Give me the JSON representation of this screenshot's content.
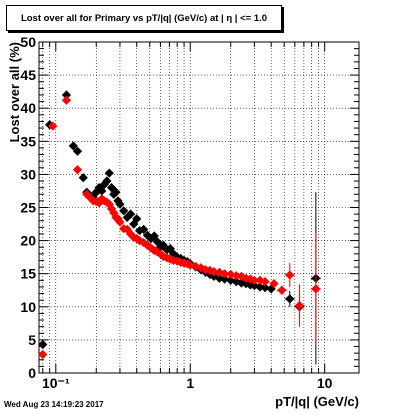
{
  "timestamp": "Wed Aug 23 14:19:23 2017",
  "chart_data": {
    "type": "scatter",
    "title": "Lost over all for Primary vs pT/|q| (GeV/c) at |  η  | <= 1.0",
    "xlabel": "pT/|q| (GeV/c)",
    "ylabel": "Lost over all (%)",
    "xscale": "log",
    "xlim": [
      0.075,
      18
    ],
    "ylim": [
      0,
      50
    ],
    "grid": true,
    "x_tick_labels": [
      {
        "x": 0.1,
        "label": "10⁻¹"
      },
      {
        "x": 1,
        "label": "1"
      },
      {
        "x": 10,
        "label": "10"
      }
    ],
    "y_ticks": [
      0,
      5,
      10,
      15,
      20,
      25,
      30,
      35,
      40,
      45,
      50
    ],
    "series": [
      {
        "color": "#000000",
        "points": [
          {
            "x": 0.08,
            "y": 4.3
          },
          {
            "x": 0.09,
            "y": 37.5
          },
          {
            "x": 0.12,
            "y": 42.0
          },
          {
            "x": 0.135,
            "y": 34.3
          },
          {
            "x": 0.145,
            "y": 33.5
          },
          {
            "x": 0.16,
            "y": 29.5
          },
          {
            "x": 0.17,
            "y": 27.3
          },
          {
            "x": 0.18,
            "y": 26.8
          },
          {
            "x": 0.19,
            "y": 26.5
          },
          {
            "x": 0.2,
            "y": 27.3
          },
          {
            "x": 0.21,
            "y": 28.0
          },
          {
            "x": 0.22,
            "y": 27.5
          },
          {
            "x": 0.23,
            "y": 28.5
          },
          {
            "x": 0.24,
            "y": 29.0
          },
          {
            "x": 0.25,
            "y": 30.2
          },
          {
            "x": 0.26,
            "y": 28.0
          },
          {
            "x": 0.27,
            "y": 27.0
          },
          {
            "x": 0.28,
            "y": 27.3
          },
          {
            "x": 0.29,
            "y": 26.0
          },
          {
            "x": 0.3,
            "y": 25.5
          },
          {
            "x": 0.32,
            "y": 24.5
          },
          {
            "x": 0.34,
            "y": 23.5
          },
          {
            "x": 0.36,
            "y": 24.0
          },
          {
            "x": 0.38,
            "y": 22.5
          },
          {
            "x": 0.4,
            "y": 23.3
          },
          {
            "x": 0.42,
            "y": 21.5
          },
          {
            "x": 0.45,
            "y": 21.7
          },
          {
            "x": 0.48,
            "y": 20.8
          },
          {
            "x": 0.51,
            "y": 20.3
          },
          {
            "x": 0.54,
            "y": 20.7
          },
          {
            "x": 0.57,
            "y": 19.8
          },
          {
            "x": 0.6,
            "y": 19.0
          },
          {
            "x": 0.63,
            "y": 19.3
          },
          {
            "x": 0.67,
            "y": 18.6
          },
          {
            "x": 0.71,
            "y": 18.8
          },
          {
            "x": 0.75,
            "y": 18.0
          },
          {
            "x": 0.8,
            "y": 17.5
          },
          {
            "x": 0.85,
            "y": 17.3
          },
          {
            "x": 0.9,
            "y": 17.0
          },
          {
            "x": 0.95,
            "y": 16.8
          },
          {
            "x": 1.0,
            "y": 16.5
          },
          {
            "x": 1.1,
            "y": 16.0
          },
          {
            "x": 1.2,
            "y": 15.6
          },
          {
            "x": 1.3,
            "y": 15.2
          },
          {
            "x": 1.4,
            "y": 14.9
          },
          {
            "x": 1.5,
            "y": 14.6
          },
          {
            "x": 1.65,
            "y": 14.3
          },
          {
            "x": 1.8,
            "y": 14.2
          },
          {
            "x": 2.0,
            "y": 14.0
          },
          {
            "x": 2.2,
            "y": 13.8
          },
          {
            "x": 2.4,
            "y": 13.6
          },
          {
            "x": 2.6,
            "y": 13.5
          },
          {
            "x": 2.8,
            "y": 13.3
          },
          {
            "x": 3.0,
            "y": 13.2
          },
          {
            "x": 3.3,
            "y": 13.0
          },
          {
            "x": 3.6,
            "y": 12.9
          },
          {
            "x": 4.0,
            "y": 12.7
          },
          {
            "x": 5.5,
            "y": 11.2,
            "err": 1.2
          },
          {
            "x": 6.5,
            "y": 10.0,
            "err": 1.5
          },
          {
            "x": 8.6,
            "y": 14.3,
            "err": 13.0
          }
        ]
      },
      {
        "color": "#ff0000",
        "points": [
          {
            "x": 0.08,
            "y": 2.8
          },
          {
            "x": 0.095,
            "y": 37.3
          },
          {
            "x": 0.12,
            "y": 41.2
          },
          {
            "x": 0.145,
            "y": 30.7
          },
          {
            "x": 0.17,
            "y": 27.0
          },
          {
            "x": 0.18,
            "y": 26.5
          },
          {
            "x": 0.19,
            "y": 26.0
          },
          {
            "x": 0.2,
            "y": 25.9
          },
          {
            "x": 0.21,
            "y": 25.7
          },
          {
            "x": 0.22,
            "y": 26.3
          },
          {
            "x": 0.23,
            "y": 26.0
          },
          {
            "x": 0.24,
            "y": 25.8
          },
          {
            "x": 0.25,
            "y": 25.5
          },
          {
            "x": 0.26,
            "y": 24.8
          },
          {
            "x": 0.27,
            "y": 24.2
          },
          {
            "x": 0.28,
            "y": 23.5
          },
          {
            "x": 0.29,
            "y": 23.3
          },
          {
            "x": 0.3,
            "y": 22.8
          },
          {
            "x": 0.32,
            "y": 21.8
          },
          {
            "x": 0.34,
            "y": 21.7
          },
          {
            "x": 0.36,
            "y": 21.0
          },
          {
            "x": 0.38,
            "y": 20.5
          },
          {
            "x": 0.4,
            "y": 20.3
          },
          {
            "x": 0.42,
            "y": 20.0
          },
          {
            "x": 0.45,
            "y": 19.7
          },
          {
            "x": 0.48,
            "y": 19.3
          },
          {
            "x": 0.51,
            "y": 18.9
          },
          {
            "x": 0.54,
            "y": 18.5
          },
          {
            "x": 0.57,
            "y": 18.3
          },
          {
            "x": 0.6,
            "y": 18.0
          },
          {
            "x": 0.63,
            "y": 17.6
          },
          {
            "x": 0.67,
            "y": 17.4
          },
          {
            "x": 0.71,
            "y": 17.2
          },
          {
            "x": 0.75,
            "y": 17.0
          },
          {
            "x": 0.8,
            "y": 16.9
          },
          {
            "x": 0.85,
            "y": 16.7
          },
          {
            "x": 0.9,
            "y": 16.6
          },
          {
            "x": 0.95,
            "y": 16.5
          },
          {
            "x": 1.0,
            "y": 16.3
          },
          {
            "x": 1.1,
            "y": 16.1
          },
          {
            "x": 1.2,
            "y": 15.9
          },
          {
            "x": 1.3,
            "y": 15.6
          },
          {
            "x": 1.4,
            "y": 15.5
          },
          {
            "x": 1.5,
            "y": 15.3
          },
          {
            "x": 1.65,
            "y": 15.2
          },
          {
            "x": 1.8,
            "y": 15.0
          },
          {
            "x": 2.0,
            "y": 14.9
          },
          {
            "x": 2.2,
            "y": 14.7
          },
          {
            "x": 2.4,
            "y": 14.6
          },
          {
            "x": 2.6,
            "y": 14.3
          },
          {
            "x": 2.8,
            "y": 14.2
          },
          {
            "x": 3.0,
            "y": 14.0
          },
          {
            "x": 3.3,
            "y": 14.0
          },
          {
            "x": 3.6,
            "y": 13.8
          },
          {
            "x": 4.2,
            "y": 13.5
          },
          {
            "x": 4.8,
            "y": 12.5,
            "err": 0.7
          },
          {
            "x": 5.5,
            "y": 14.8,
            "err": 1.8
          },
          {
            "x": 6.5,
            "y": 10.2,
            "err": 3.2
          },
          {
            "x": 8.6,
            "y": 12.7,
            "err": 8.5
          }
        ]
      }
    ]
  }
}
